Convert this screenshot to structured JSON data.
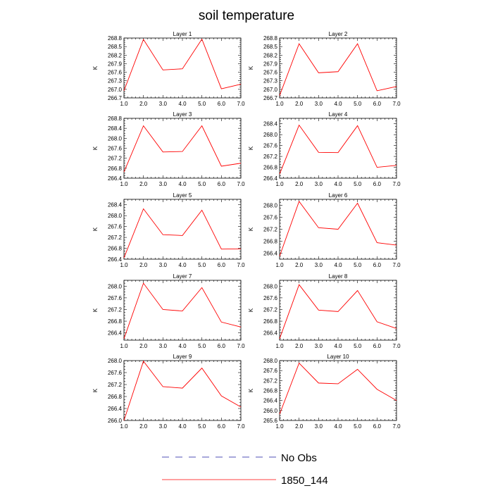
{
  "title": "soil temperature",
  "chart_data": {
    "type": "line",
    "title": "soil temperature",
    "xlim": [
      1.0,
      7.0
    ],
    "x": [
      1,
      2,
      3,
      4,
      5,
      6,
      7
    ],
    "xticks": [
      1.0,
      2.0,
      3.0,
      4.0,
      5.0,
      6.0,
      7.0
    ],
    "legend": {
      "placement": "bottom-center",
      "entries": [
        {
          "label": "No Obs",
          "color": "#1a1aa0",
          "style": "dashed"
        },
        {
          "label": "1850_144",
          "color": "#ff0000",
          "style": "solid"
        }
      ]
    },
    "series_color": "#ff0000",
    "panels": [
      {
        "title": "Layer 1",
        "ylabel": "K",
        "ylim": [
          266.7,
          268.8
        ],
        "yticks": [
          266.7,
          267.0,
          267.3,
          267.6,
          267.9,
          268.2,
          268.5,
          268.8
        ],
        "values": [
          266.95,
          268.75,
          267.68,
          267.72,
          268.76,
          267.02,
          267.18
        ]
      },
      {
        "title": "Layer 2",
        "ylabel": "K",
        "ylim": [
          266.7,
          268.8
        ],
        "yticks": [
          266.7,
          267.0,
          267.3,
          267.6,
          267.9,
          268.2,
          268.5,
          268.8
        ],
        "values": [
          266.78,
          268.6,
          267.58,
          267.62,
          268.6,
          266.95,
          267.1
        ]
      },
      {
        "title": "Layer 3",
        "ylabel": "K",
        "ylim": [
          266.4,
          268.8
        ],
        "yticks": [
          266.4,
          266.8,
          267.2,
          267.6,
          268.0,
          268.4,
          268.8
        ],
        "values": [
          266.65,
          268.5,
          267.45,
          267.47,
          268.5,
          266.88,
          267.0
        ]
      },
      {
        "title": "Layer 4",
        "ylabel": "K",
        "ylim": [
          266.4,
          268.6
        ],
        "yticks": [
          266.4,
          266.8,
          267.2,
          267.6,
          268.0,
          268.4
        ],
        "values": [
          266.55,
          268.35,
          267.35,
          267.34,
          268.33,
          266.8,
          266.87
        ]
      },
      {
        "title": "Layer 5",
        "ylabel": "K",
        "ylim": [
          266.4,
          268.6
        ],
        "yticks": [
          266.4,
          266.8,
          267.2,
          267.6,
          268.0,
          268.4
        ],
        "values": [
          266.45,
          268.25,
          267.3,
          267.27,
          268.2,
          266.77,
          266.78
        ]
      },
      {
        "title": "Layer 6",
        "ylabel": "K",
        "ylim": [
          266.2,
          268.2
        ],
        "yticks": [
          266.4,
          266.8,
          267.2,
          267.6,
          268.0
        ],
        "values": [
          266.3,
          268.13,
          267.25,
          267.2,
          268.07,
          266.75,
          266.67
        ]
      },
      {
        "title": "Layer 7",
        "ylabel": "K",
        "ylim": [
          266.15,
          268.2
        ],
        "yticks": [
          266.4,
          266.8,
          267.2,
          267.6,
          268.0
        ],
        "values": [
          266.2,
          268.1,
          267.2,
          267.15,
          267.95,
          266.77,
          266.6
        ]
      },
      {
        "title": "Layer 8",
        "ylabel": "K",
        "ylim": [
          266.15,
          268.2
        ],
        "yticks": [
          266.4,
          266.8,
          267.2,
          267.6,
          268.0
        ],
        "values": [
          266.2,
          268.05,
          267.18,
          267.13,
          267.85,
          266.78,
          266.55
        ]
      },
      {
        "title": "Layer 9",
        "ylabel": "K",
        "ylim": [
          266.0,
          268.0
        ],
        "yticks": [
          266.0,
          266.4,
          266.8,
          267.2,
          267.6,
          268.0
        ],
        "values": [
          266.0,
          267.98,
          267.13,
          267.08,
          267.75,
          266.82,
          266.45
        ]
      },
      {
        "title": "Layer 10",
        "ylabel": "K",
        "ylim": [
          265.6,
          268.0
        ],
        "yticks": [
          265.6,
          266.0,
          266.4,
          266.8,
          267.2,
          267.6,
          268.0
        ],
        "values": [
          265.85,
          267.9,
          267.1,
          267.07,
          267.65,
          266.85,
          266.4
        ]
      }
    ]
  }
}
